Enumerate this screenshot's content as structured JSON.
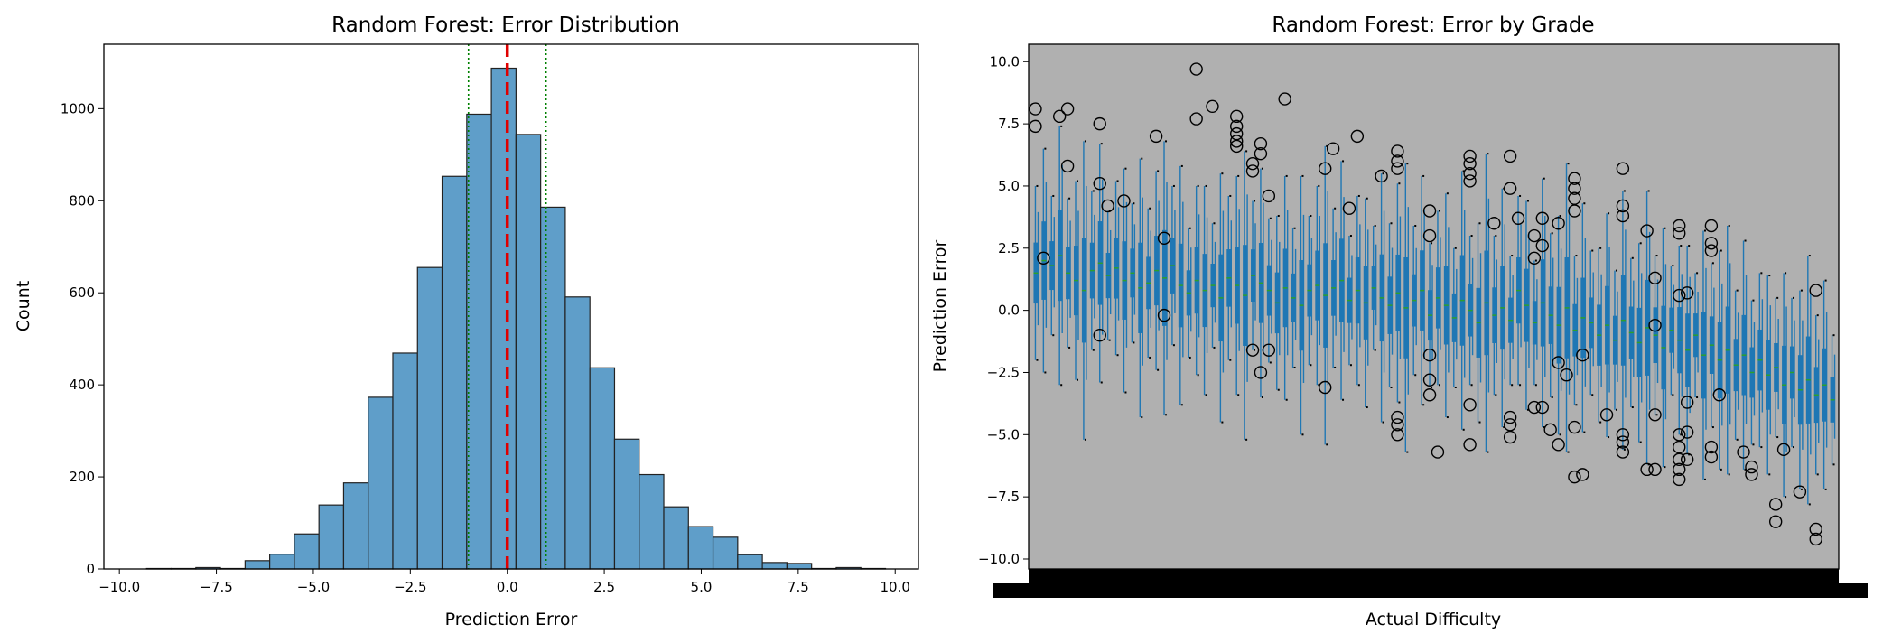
{
  "chart_data": [
    {
      "type": "bar",
      "title": "Random Forest: Error Distribution",
      "xlabel": "Prediction Error",
      "ylabel": "Count",
      "xlim": [
        -10.4,
        10.6
      ],
      "ylim": [
        0,
        1140
      ],
      "xticks": [
        "−10.0",
        "−7.5",
        "−5.0",
        "−2.5",
        "0.0",
        "2.5",
        "5.0",
        "7.5",
        "10.0"
      ],
      "xtick_values": [
        -10,
        -7.5,
        -5,
        -2.5,
        0,
        2.5,
        5,
        7.5,
        10
      ],
      "yticks": [
        "0",
        "200",
        "400",
        "600",
        "800",
        "1000"
      ],
      "ytick_values": [
        0,
        200,
        400,
        600,
        800,
        1000
      ],
      "bin_range": [
        -9.3,
        9.75
      ],
      "counts": [
        1,
        1,
        3,
        1,
        18,
        32,
        76,
        139,
        187,
        373,
        469,
        655,
        853,
        988,
        1088,
        944,
        786,
        591,
        437,
        282,
        205,
        135,
        92,
        69,
        31,
        14,
        12,
        1,
        3,
        1
      ],
      "bar_color": "#5f9ec9",
      "reference_lines": [
        {
          "x": 0,
          "style": "dashed",
          "color": "#e00000"
        },
        {
          "x": -1,
          "style": "dotted",
          "color": "#008000"
        },
        {
          "x": 1,
          "style": "dotted",
          "color": "#008000"
        }
      ],
      "grid": false
    },
    {
      "type": "boxplot",
      "title": "Random Forest: Error by Grade",
      "xlabel": "Actual Difficulty",
      "ylabel": "Prediction Error",
      "ylim": [
        -10.4,
        10.7
      ],
      "yticks": [
        "−10.0",
        "−7.5",
        "−5.0",
        "−2.5",
        "0.0",
        "2.5",
        "5.0",
        "7.5",
        "10.0"
      ],
      "ytick_values": [
        -10,
        -7.5,
        -5,
        -2.5,
        0,
        2.5,
        5,
        7.5,
        10
      ],
      "background_color": "#b0b0b0",
      "box_color": "#1f77b4",
      "median_color": "#2ca02c",
      "group_count": 100,
      "medians": [
        1.5,
        2.0,
        1.8,
        2.2,
        1.5,
        1.2,
        0.8,
        1.6,
        1.9,
        1.4,
        1.7,
        1.2,
        1.5,
        0.9,
        1.1,
        1.6,
        1.3,
        1.8,
        1.0,
        0.7,
        1.2,
        0.8,
        1.0,
        0.5,
        1.3,
        1.0,
        0.6,
        1.4,
        1.1,
        0.8,
        0.3,
        0.9,
        0.5,
        0.2,
        0.8,
        1.0,
        0.6,
        0.9,
        1.2,
        0.4,
        0.8,
        0.3,
        0.9,
        0.5,
        0.2,
        0.7,
        0.1,
        0.4,
        0.8,
        -0.2,
        0.5,
        0.2,
        -0.3,
        0.4,
        0.0,
        -0.5,
        0.3,
        -0.2,
        0.1,
        -0.4,
        0.8,
        0.2,
        -0.5,
        0.3,
        -0.2,
        -0.6,
        0.1,
        -0.8,
        -0.3,
        -0.5,
        -1.0,
        -0.6,
        -1.2,
        -0.4,
        -0.9,
        -1.3,
        -0.7,
        -1.0,
        -1.5,
        -0.8,
        -1.2,
        -1.6,
        -1.0,
        -1.8,
        -1.4,
        -2.0,
        -1.6,
        -2.2,
        -1.8,
        -2.5,
        -2.0,
        -2.6,
        -2.3,
        -3.0,
        -2.5,
        -3.2,
        -2.8,
        -3.4,
        -3.0,
        -3.6
      ],
      "whisker_extent": [
        3.5,
        4.5,
        2.8,
        5.2,
        3.0,
        4.0,
        6.0,
        3.2,
        4.8,
        2.6,
        3.5,
        4.5,
        2.8,
        5.2,
        3.0,
        4.0,
        5.5,
        3.2,
        4.8,
        2.6,
        3.8,
        4.2,
        2.5,
        5.0,
        3.3,
        4.4,
        5.8,
        3.0,
        4.6,
        2.9,
        3.5,
        4.5,
        2.8,
        5.2,
        3.0,
        4.0,
        6.0,
        3.2,
        4.8,
        2.6,
        3.8,
        4.2,
        2.5,
        5.0,
        3.3,
        4.4,
        5.8,
        3.0,
        4.6,
        2.9,
        3.5,
        4.5,
        2.8,
        5.2,
        3.0,
        4.0,
        6.0,
        3.2,
        4.8,
        2.6,
        3.8,
        4.2,
        2.5,
        5.0,
        3.3,
        4.4,
        5.8,
        3.0,
        4.6,
        2.9,
        3.5,
        4.5,
        2.8,
        5.2,
        3.0,
        4.0,
        5.5,
        3.2,
        4.8,
        2.6,
        3.8,
        4.2,
        2.5,
        5.0,
        3.3,
        4.4,
        5.0,
        3.0,
        4.6,
        2.9,
        3.5,
        4.0,
        2.8,
        4.5,
        3.0,
        4.0,
        5.0,
        3.2,
        4.2,
        2.6
      ],
      "outliers": [
        [
          0,
          8.1
        ],
        [
          0,
          7.4
        ],
        [
          1,
          2.1
        ],
        [
          3,
          7.8
        ],
        [
          4,
          8.1
        ],
        [
          4,
          5.8
        ],
        [
          8,
          7.5
        ],
        [
          8,
          5.1
        ],
        [
          8,
          -1.0
        ],
        [
          9,
          4.2
        ],
        [
          11,
          4.4
        ],
        [
          15,
          7.0
        ],
        [
          16,
          2.9
        ],
        [
          16,
          -0.2
        ],
        [
          20,
          9.7
        ],
        [
          20,
          7.7
        ],
        [
          22,
          8.2
        ],
        [
          25,
          7.8
        ],
        [
          25,
          7.4
        ],
        [
          25,
          7.1
        ],
        [
          25,
          6.8
        ],
        [
          25,
          6.6
        ],
        [
          27,
          5.6
        ],
        [
          27,
          5.9
        ],
        [
          27,
          -1.6
        ],
        [
          28,
          6.7
        ],
        [
          28,
          6.3
        ],
        [
          28,
          -2.5
        ],
        [
          29,
          4.6
        ],
        [
          29,
          -1.6
        ],
        [
          31,
          8.5
        ],
        [
          36,
          5.7
        ],
        [
          36,
          -3.1
        ],
        [
          37,
          6.5
        ],
        [
          39,
          4.1
        ],
        [
          40,
          7.0
        ],
        [
          43,
          5.4
        ],
        [
          45,
          6.4
        ],
        [
          45,
          6.0
        ],
        [
          45,
          5.7
        ],
        [
          45,
          -4.3
        ],
        [
          45,
          -4.6
        ],
        [
          45,
          -5.0
        ],
        [
          49,
          4.0
        ],
        [
          49,
          3.0
        ],
        [
          49,
          -1.8
        ],
        [
          49,
          -2.8
        ],
        [
          49,
          -3.4
        ],
        [
          50,
          -5.7
        ],
        [
          54,
          6.2
        ],
        [
          54,
          5.9
        ],
        [
          54,
          5.5
        ],
        [
          54,
          5.2
        ],
        [
          54,
          -3.8
        ],
        [
          54,
          -5.4
        ],
        [
          57,
          3.5
        ],
        [
          59,
          6.2
        ],
        [
          59,
          4.9
        ],
        [
          59,
          -4.3
        ],
        [
          59,
          -4.6
        ],
        [
          59,
          -5.1
        ],
        [
          60,
          3.7
        ],
        [
          62,
          3.0
        ],
        [
          62,
          2.1
        ],
        [
          62,
          -3.9
        ],
        [
          63,
          3.7
        ],
        [
          63,
          2.6
        ],
        [
          63,
          -3.9
        ],
        [
          64,
          -4.8
        ],
        [
          65,
          3.5
        ],
        [
          65,
          -5.4
        ],
        [
          65,
          -2.1
        ],
        [
          66,
          -2.6
        ],
        [
          67,
          5.3
        ],
        [
          67,
          4.9
        ],
        [
          67,
          4.5
        ],
        [
          67,
          4.0
        ],
        [
          67,
          -4.7
        ],
        [
          67,
          -6.7
        ],
        [
          68,
          -1.8
        ],
        [
          68,
          -6.6
        ],
        [
          71,
          -4.2
        ],
        [
          73,
          5.7
        ],
        [
          73,
          4.2
        ],
        [
          73,
          3.8
        ],
        [
          73,
          -5.0
        ],
        [
          73,
          -5.3
        ],
        [
          73,
          -5.7
        ],
        [
          76,
          -6.4
        ],
        [
          76,
          3.2
        ],
        [
          77,
          1.3
        ],
        [
          77,
          -4.2
        ],
        [
          77,
          -0.6
        ],
        [
          77,
          -6.4
        ],
        [
          80,
          3.4
        ],
        [
          80,
          3.1
        ],
        [
          80,
          -5.0
        ],
        [
          80,
          -5.5
        ],
        [
          80,
          -6.0
        ],
        [
          80,
          -6.4
        ],
        [
          80,
          -6.8
        ],
        [
          80,
          0.6
        ],
        [
          81,
          -6.0
        ],
        [
          81,
          -3.7
        ],
        [
          81,
          -4.9
        ],
        [
          81,
          0.7
        ],
        [
          84,
          3.4
        ],
        [
          84,
          2.7
        ],
        [
          84,
          2.4
        ],
        [
          84,
          -5.5
        ],
        [
          84,
          -5.9
        ],
        [
          85,
          -3.4
        ],
        [
          88,
          -5.7
        ],
        [
          89,
          -6.3
        ],
        [
          89,
          -6.6
        ],
        [
          92,
          -7.8
        ],
        [
          92,
          -8.5
        ],
        [
          93,
          -5.6
        ],
        [
          95,
          -7.3
        ],
        [
          97,
          0.8
        ],
        [
          97,
          -8.8
        ],
        [
          97,
          -9.2
        ]
      ],
      "grid": false
    }
  ]
}
